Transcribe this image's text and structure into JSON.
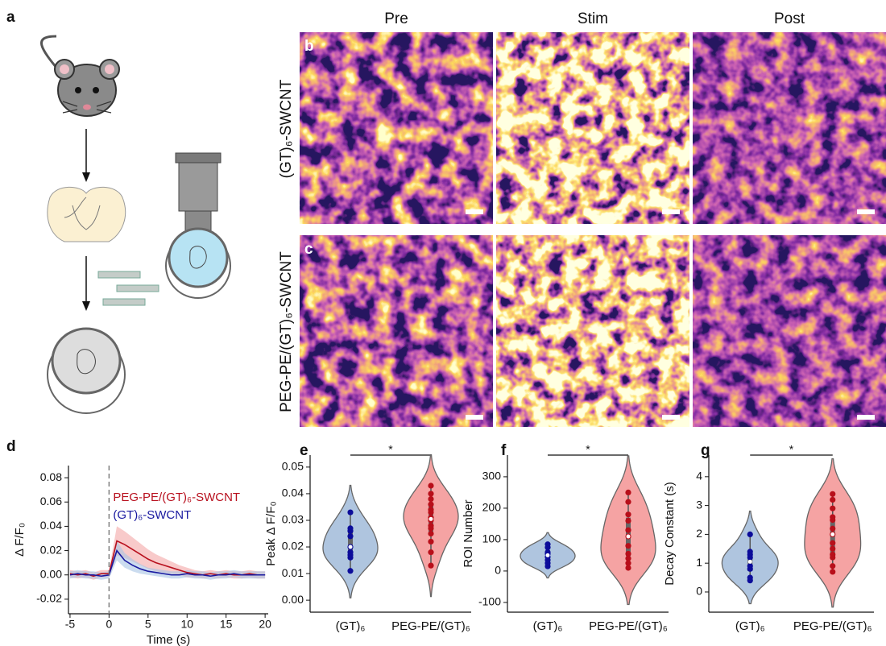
{
  "figure": {
    "panels": [
      "a",
      "b",
      "c"
    ]
  },
  "image_grid": {
    "columns": [
      "Pre",
      "Stim",
      "Post"
    ],
    "rows": [
      "(GT)₆-SWCNT",
      "PEG-PE/(GT)₆-SWCNT"
    ]
  },
  "chart_data": [
    {
      "label": "d",
      "type": "line",
      "x_label": "Time (s)",
      "y_label": "Δ F/F₀",
      "x": [
        -5,
        -4,
        -3,
        -2,
        -1,
        0,
        1,
        2,
        3,
        4,
        5,
        6,
        7,
        8,
        9,
        10,
        11,
        12,
        13,
        14,
        15,
        16,
        17,
        18,
        19,
        20
      ],
      "xlim": [
        -5.2,
        20.4
      ],
      "xticks": [
        -5,
        0,
        5,
        10,
        15,
        20
      ],
      "ylim": [
        -0.032,
        0.09
      ],
      "yticks": [
        -0.02,
        {
          "value": 0,
          "label": "0.00"
        },
        0.02,
        0.04,
        0.06,
        0.08
      ],
      "vline": 0,
      "series": [
        {
          "name": "PEG-PE/(GT)₆-SWCNT",
          "color": "#b8101e",
          "band_color": "#f4a6a6",
          "values": [
            0.001,
            0,
            0.001,
            -0.001,
            0.001,
            0.001,
            0.028,
            0.025,
            0.021,
            0.017,
            0.013,
            0.01,
            0.008,
            0.006,
            0.004,
            0.002,
            0.001,
            0,
            0.001,
            0,
            0.001,
            0,
            0,
            0.001,
            0,
            0
          ],
          "error": [
            0.003,
            0.003,
            0.003,
            0.003,
            0.003,
            0.003,
            0.012,
            0.011,
            0.01,
            0.009,
            0.008,
            0.007,
            0.006,
            0.005,
            0.004,
            0.004,
            0.003,
            0.003,
            0.003,
            0.003,
            0.003,
            0.003,
            0.003,
            0.003,
            0.003,
            0.003
          ]
        },
        {
          "name": "(GT)₆-SWCNT",
          "color": "#1a1aa0",
          "band_color": "#a9c4e4",
          "values": [
            0,
            0.001,
            0,
            0,
            -0.001,
            0,
            0.02,
            0.012,
            0.008,
            0.005,
            0.003,
            0.002,
            0.001,
            0,
            0,
            0.001,
            0,
            0,
            -0.001,
            0,
            0,
            0.001,
            0,
            0,
            0,
            0
          ],
          "error": [
            0.003,
            0.003,
            0.003,
            0.003,
            0.003,
            0.003,
            0.008,
            0.006,
            0.005,
            0.004,
            0.003,
            0.003,
            0.003,
            0.003,
            0.003,
            0.003,
            0.003,
            0.003,
            0.003,
            0.003,
            0.003,
            0.003,
            0.003,
            0.003,
            0.003,
            0.003
          ]
        }
      ]
    },
    {
      "label": "e",
      "type": "violin",
      "y_label": "Peak Δ F/F₀",
      "significance": "*",
      "categories": [
        "(GT)₆",
        "PEG-PE/(GT)₆"
      ],
      "ylim": [
        -0.0045,
        0.0545
      ],
      "yticks": [
        {
          "value": 0,
          "label": "0.00"
        },
        0.01,
        0.02,
        0.03,
        0.04,
        0.05
      ],
      "series": [
        {
          "color": "#0c0c9a",
          "violin_color": "#afc5df",
          "values": [
            0.033,
            0.027,
            0.026,
            0.024,
            0.02,
            0.018,
            0.017,
            0.016,
            0.011
          ]
        },
        {
          "color": "#b80f1a",
          "violin_color": "#f5a3a3",
          "values": [
            0.043,
            0.04,
            0.038,
            0.036,
            0.034,
            0.033,
            0.031,
            0.03,
            0.028,
            0.027,
            0.025,
            0.022,
            0.018,
            0.013
          ]
        }
      ]
    },
    {
      "label": "f",
      "type": "violin",
      "y_label": "ROI Number",
      "significance": "*",
      "categories": [
        "(GT)₆",
        "PEG-PE/(GT)₆"
      ],
      "ylim": [
        -131,
        369
      ],
      "yticks": [
        -100,
        0,
        100,
        200,
        300
      ],
      "series": [
        {
          "color": "#0c0c9a",
          "violin_color": "#afc5df",
          "values": [
            85,
            75,
            60,
            55,
            45,
            35,
            25,
            15
          ]
        },
        {
          "color": "#b80f1a",
          "violin_color": "#f5a3a3",
          "values": [
            250,
            220,
            180,
            160,
            130,
            110,
            80,
            55,
            40,
            25,
            10
          ]
        }
      ]
    },
    {
      "label": "g",
      "type": "violin",
      "y_label": "Decay Constant (s)",
      "significance": "*",
      "categories": [
        "(GT)₆",
        "PEG-PE/(GT)₆"
      ],
      "ylim": [
        -0.7,
        4.75
      ],
      "yticks": [
        0,
        1,
        2,
        3,
        4
      ],
      "series": [
        {
          "color": "#0c0c9a",
          "violin_color": "#afc5df",
          "values": [
            2.0,
            1.4,
            1.3,
            1.2,
            0.9,
            0.8,
            0.5,
            0.4
          ]
        },
        {
          "color": "#b80f1a",
          "violin_color": "#f5a3a3",
          "values": [
            3.4,
            3.2,
            2.9,
            2.6,
            2.5,
            2.2,
            2.0,
            1.7,
            1.5,
            1.3,
            1.2,
            0.9,
            0.7
          ]
        }
      ]
    }
  ]
}
